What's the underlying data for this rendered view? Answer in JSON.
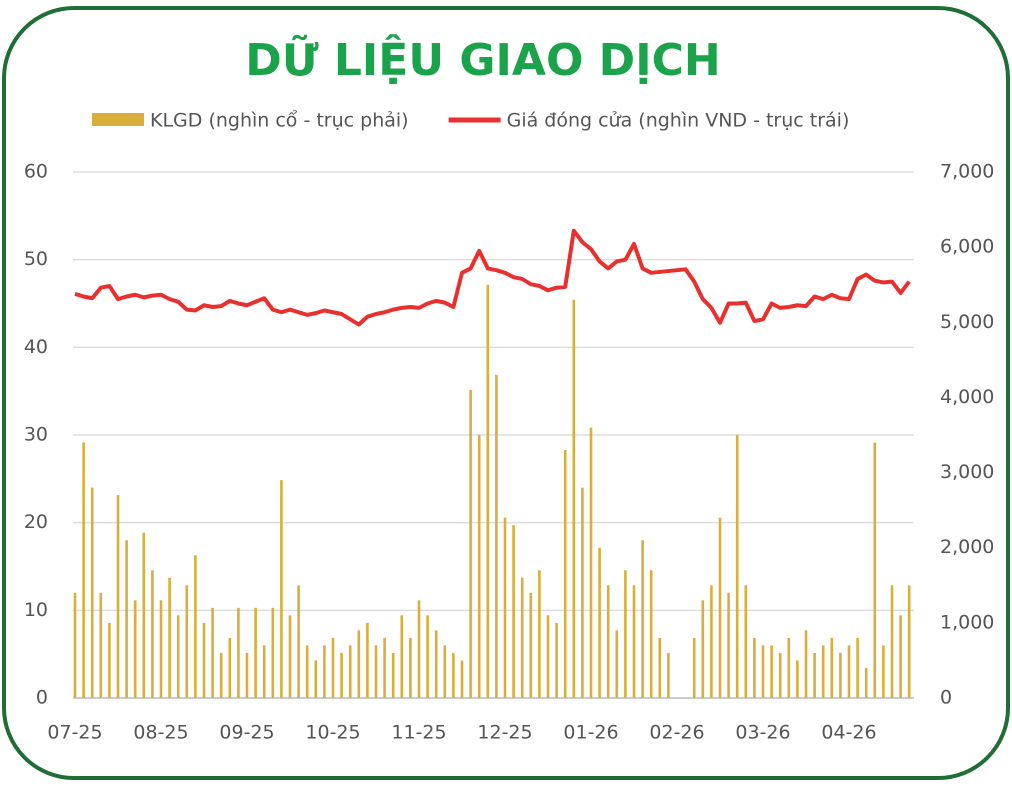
{
  "chart_data": {
    "type": "bar_line",
    "title": "DỮ LIỆU GIAO DỊCH",
    "categories": [
      "07-25",
      null,
      null,
      null,
      null,
      null,
      null,
      null,
      null,
      null,
      "08-25",
      null,
      null,
      null,
      null,
      null,
      null,
      null,
      null,
      null,
      "09-25",
      null,
      null,
      null,
      null,
      null,
      null,
      null,
      null,
      null,
      "10-25",
      null,
      null,
      null,
      null,
      null,
      null,
      null,
      null,
      null,
      "11-25",
      null,
      null,
      null,
      null,
      null,
      null,
      null,
      null,
      null,
      "12-25",
      null,
      null,
      null,
      null,
      null,
      null,
      null,
      null,
      null,
      "01-26",
      null,
      null,
      null,
      null,
      null,
      null,
      null,
      null,
      null,
      "02-26",
      null,
      null,
      null,
      null,
      null,
      null,
      null,
      null,
      null,
      "03-26",
      null,
      null,
      null,
      null,
      null,
      null,
      null,
      null,
      null,
      "04-26",
      null,
      null,
      null,
      null,
      null,
      null,
      null
    ],
    "series": [
      {
        "name": "KLGD (nghìn cổ - trục phải)",
        "type": "bar",
        "axis": "y2",
        "color": "#d9ae3a",
        "values": [
          1400,
          3400,
          2800,
          1400,
          1000,
          2700,
          2100,
          1300,
          2200,
          1700,
          1300,
          1600,
          1100,
          1500,
          1900,
          1000,
          1200,
          600,
          800,
          1200,
          600,
          1200,
          700,
          1200,
          2900,
          1100,
          1500,
          700,
          500,
          700,
          800,
          600,
          700,
          900,
          1000,
          700,
          800,
          600,
          1100,
          800,
          1300,
          1100,
          900,
          700,
          600,
          500,
          4100,
          3500,
          5500,
          4300,
          2400,
          2300,
          1600,
          1400,
          1700,
          1100,
          1000,
          3300,
          5300,
          2800,
          3600,
          2000,
          1500,
          900,
          1700,
          1500,
          2100,
          1700,
          800,
          600,
          0,
          0,
          800,
          1300,
          1500,
          2400,
          1400,
          3500,
          1500,
          800,
          700,
          700,
          600,
          800,
          500,
          900,
          600,
          700,
          800,
          600,
          700,
          800,
          400,
          3400,
          700,
          1500,
          1100,
          1500
        ]
      },
      {
        "name": "Giá đóng cửa (nghìn VND - trục trái)",
        "type": "line",
        "axis": "y",
        "color": "#e8312f",
        "values": [
          46.1,
          45.8,
          45.6,
          46.8,
          47.0,
          45.5,
          45.8,
          46.0,
          45.7,
          45.9,
          46.0,
          45.5,
          45.2,
          44.3,
          44.2,
          44.8,
          44.6,
          44.7,
          45.3,
          45.0,
          44.8,
          45.2,
          45.6,
          44.3,
          44.0,
          44.3,
          44.0,
          43.7,
          43.9,
          44.2,
          44.0,
          43.8,
          43.2,
          42.6,
          43.5,
          43.8,
          44.0,
          44.3,
          44.5,
          44.6,
          44.5,
          45.0,
          45.3,
          45.1,
          44.6,
          48.5,
          49.0,
          51.0,
          49.0,
          48.8,
          48.5,
          48.0,
          47.8,
          47.2,
          47.0,
          46.5,
          46.8,
          46.9,
          53.3,
          52.0,
          51.2,
          49.8,
          49.0,
          49.8,
          50.0,
          51.8,
          49.0,
          48.5,
          48.6,
          48.7,
          48.8,
          48.9,
          47.5,
          45.5,
          44.5,
          42.8,
          45.0,
          45.0,
          45.1,
          43.0,
          43.2,
          45.0,
          44.5,
          44.6,
          44.8,
          44.7,
          45.8,
          45.5,
          46.0,
          45.6,
          45.5,
          47.8,
          48.3,
          47.6,
          47.4,
          47.5,
          46.2,
          47.5
        ]
      }
    ],
    "ylim": [
      0,
      60
    ],
    "yticks": [
      0,
      10,
      20,
      30,
      40,
      50,
      60
    ],
    "y2lim": [
      0,
      7000
    ],
    "y2ticks": [
      {
        "value": 0,
        "label": "0"
      },
      {
        "value": 1000,
        "label": "1,000"
      },
      {
        "value": 2000,
        "label": "2,000"
      },
      {
        "value": 3000,
        "label": "3,000"
      },
      {
        "value": 4000,
        "label": "4,000"
      },
      {
        "value": 5000,
        "label": "5,000"
      },
      {
        "value": 6000,
        "label": "6,000"
      },
      {
        "value": 7000,
        "label": "7,000"
      }
    ],
    "grid": true
  }
}
